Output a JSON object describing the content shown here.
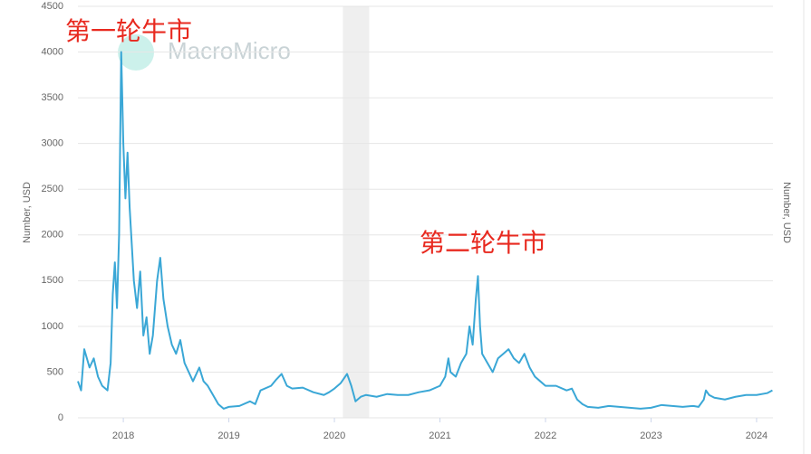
{
  "chart_data": {
    "type": "line",
    "watermark": "MacroMicro",
    "y_label": "Number, USD",
    "annotations": [
      "第一轮牛市",
      "第二轮牛市"
    ],
    "shade": [
      2020.08,
      2020.33
    ],
    "xlim": [
      2017.57,
      2024.155
    ],
    "xticks": [
      2018,
      2019,
      2020,
      2021,
      2022,
      2023,
      2024
    ],
    "ylim": [
      0,
      4500
    ],
    "yticks": [
      0,
      500,
      1000,
      1500,
      2000,
      2500,
      3000,
      3500,
      4000,
      4500
    ],
    "grid": true,
    "x": [
      2017.57,
      2017.6,
      2017.63,
      2017.68,
      2017.72,
      2017.76,
      2017.8,
      2017.85,
      2017.88,
      2017.9,
      2017.92,
      2017.94,
      2017.96,
      2017.98,
      2018.0,
      2018.02,
      2018.04,
      2018.06,
      2018.1,
      2018.13,
      2018.16,
      2018.19,
      2018.22,
      2018.25,
      2018.28,
      2018.32,
      2018.35,
      2018.38,
      2018.42,
      2018.46,
      2018.5,
      2018.54,
      2018.58,
      2018.62,
      2018.66,
      2018.72,
      2018.76,
      2018.8,
      2018.85,
      2018.9,
      2018.95,
      2019.0,
      2019.1,
      2019.2,
      2019.25,
      2019.3,
      2019.4,
      2019.45,
      2019.5,
      2019.55,
      2019.6,
      2019.7,
      2019.8,
      2019.9,
      2019.95,
      2020.0,
      2020.06,
      2020.12,
      2020.16,
      2020.2,
      2020.25,
      2020.3,
      2020.4,
      2020.5,
      2020.6,
      2020.7,
      2020.8,
      2020.9,
      2021.0,
      2021.05,
      2021.08,
      2021.1,
      2021.15,
      2021.2,
      2021.25,
      2021.28,
      2021.31,
      2021.34,
      2021.36,
      2021.38,
      2021.4,
      2021.45,
      2021.5,
      2021.55,
      2021.6,
      2021.65,
      2021.7,
      2021.75,
      2021.8,
      2021.85,
      2021.9,
      2021.95,
      2022.0,
      2022.1,
      2022.2,
      2022.25,
      2022.3,
      2022.35,
      2022.4,
      2022.5,
      2022.6,
      2022.7,
      2022.8,
      2022.9,
      2023.0,
      2023.1,
      2023.2,
      2023.3,
      2023.4,
      2023.45,
      2023.5,
      2023.52,
      2023.55,
      2023.6,
      2023.7,
      2023.8,
      2023.9,
      2024.0,
      2024.1,
      2024.15
    ],
    "series": [
      {
        "name": "Number, USD",
        "color": "#3aa7d6",
        "values": [
          400,
          300,
          750,
          550,
          650,
          450,
          350,
          300,
          600,
          1350,
          1700,
          1200,
          2000,
          4000,
          3000,
          2400,
          2900,
          2300,
          1500,
          1200,
          1600,
          900,
          1100,
          700,
          900,
          1500,
          1750,
          1300,
          1000,
          800,
          700,
          850,
          600,
          500,
          400,
          550,
          400,
          350,
          250,
          150,
          100,
          120,
          130,
          180,
          150,
          300,
          350,
          420,
          480,
          350,
          320,
          330,
          280,
          250,
          280,
          320,
          380,
          480,
          350,
          180,
          230,
          250,
          230,
          260,
          250,
          250,
          280,
          300,
          350,
          450,
          650,
          500,
          450,
          600,
          700,
          1000,
          800,
          1300,
          1550,
          1000,
          700,
          600,
          500,
          650,
          700,
          750,
          650,
          600,
          700,
          550,
          450,
          400,
          350,
          350,
          300,
          320,
          200,
          150,
          120,
          110,
          130,
          120,
          110,
          100,
          110,
          140,
          130,
          120,
          130,
          120,
          200,
          300,
          250,
          220,
          200,
          230,
          250,
          250,
          270,
          300
        ]
      }
    ]
  }
}
